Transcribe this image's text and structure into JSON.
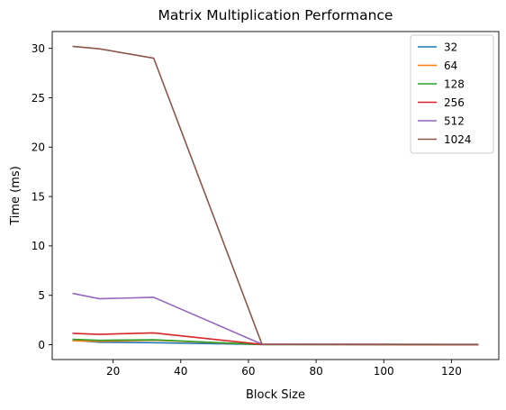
{
  "chart_data": {
    "type": "line",
    "title": "Matrix Multiplication Performance",
    "xlabel": "Block Size",
    "ylabel": "Time (ms)",
    "x": [
      8,
      16,
      32,
      64,
      128
    ],
    "xlim": [
      2,
      134
    ],
    "ylim": [
      -1.5,
      31.7
    ],
    "xticks": [
      20,
      40,
      60,
      80,
      100,
      120
    ],
    "yticks": [
      0,
      5,
      10,
      15,
      20,
      25,
      30
    ],
    "grid": false,
    "legend_position": "top-right",
    "series": [
      {
        "name": "32",
        "color": "#1f77b4",
        "values": [
          0.45,
          0.25,
          0.2,
          0.02,
          0.01
        ]
      },
      {
        "name": "64",
        "color": "#ff7f0e",
        "values": [
          0.4,
          0.35,
          0.45,
          0.02,
          0.01
        ]
      },
      {
        "name": "128",
        "color": "#2ca02c",
        "values": [
          0.55,
          0.45,
          0.5,
          0.02,
          0.01
        ]
      },
      {
        "name": "256",
        "color": "#d62728",
        "values": [
          1.15,
          1.05,
          1.2,
          0.03,
          0.01
        ]
      },
      {
        "name": "512",
        "color": "#9467bd",
        "values": [
          5.2,
          4.65,
          4.8,
          0.05,
          0.02
        ]
      },
      {
        "name": "1024",
        "color": "#8c564b",
        "values": [
          30.2,
          29.95,
          29.0,
          0.05,
          0.03
        ]
      }
    ]
  }
}
